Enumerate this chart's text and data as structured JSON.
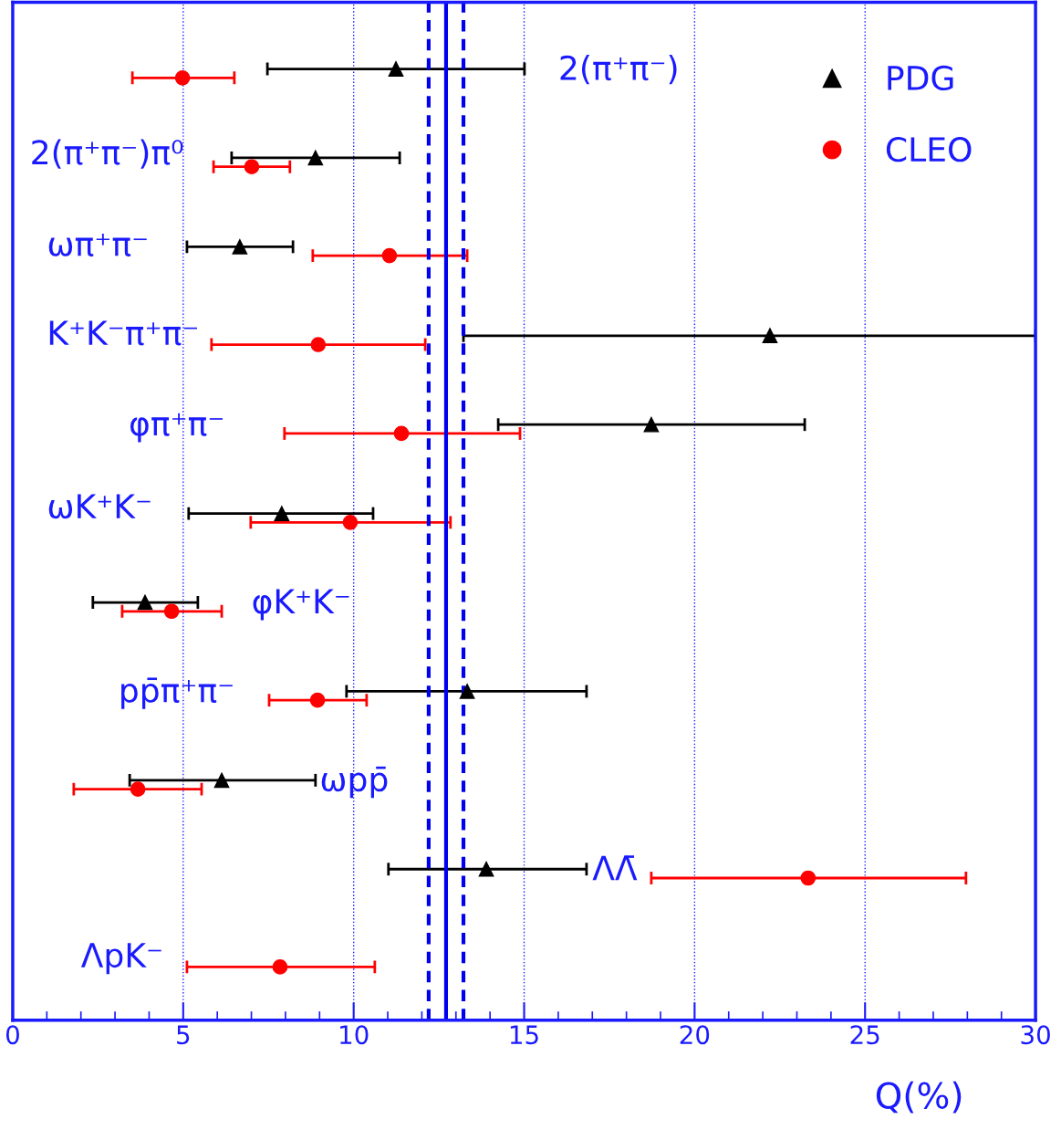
{
  "chart_data": {
    "type": "scatter",
    "orientation": "horizontal",
    "xlabel": "Q(%)",
    "categories": [
      "2(π⁺π⁻)",
      "2(π⁺π⁻)π⁰",
      "ωπ⁺π⁻",
      "K⁺K⁻π⁺π⁻",
      "φπ⁺π⁻",
      "ωK⁺K⁻",
      "φK⁺K⁻",
      "pp̄π⁺π⁻",
      "ωpp̄",
      "ΛΛ̄",
      "ΛpK⁻"
    ],
    "series": [
      {
        "name": "PDG",
        "color": "#000000",
        "marker": "triangle",
        "values": [
          11.24,
          8.88,
          6.66,
          22.21,
          18.73,
          7.89,
          3.88,
          13.33,
          6.13,
          13.89,
          null
        ],
        "errors": [
          [
            7.47,
            15.01
          ],
          [
            6.42,
            11.35
          ],
          [
            5.11,
            8.22
          ],
          [
            13.22,
            30
          ],
          [
            14.24,
            23.23
          ],
          [
            5.16,
            10.57
          ],
          [
            2.35,
            5.43
          ],
          [
            9.79,
            16.83
          ],
          [
            3.43,
            8.88
          ],
          [
            11.02,
            16.83
          ],
          null
        ]
      },
      {
        "name": "CLEO",
        "color": "#ff0000",
        "marker": "circle",
        "values": [
          4.98,
          7.01,
          11.05,
          8.96,
          11.4,
          9.9,
          4.66,
          8.94,
          3.67,
          23.33,
          7.84
        ],
        "errors": [
          [
            3.51,
            6.5
          ],
          [
            5.89,
            8.13
          ],
          [
            8.8,
            13.33
          ],
          [
            5.83,
            12.1
          ],
          [
            7.97,
            14.88
          ],
          [
            6.98,
            12.84
          ],
          [
            3.21,
            6.13
          ],
          [
            7.52,
            10.38
          ],
          [
            1.79,
            5.54
          ],
          [
            18.73,
            27.96
          ],
          [
            5.11,
            10.62
          ]
        ]
      }
    ],
    "xlim": [
      0,
      30
    ],
    "xticks": [
      0,
      5,
      10,
      15,
      20,
      25,
      30
    ],
    "tick_labels": "x",
    "grid": "x",
    "legend": "top right",
    "ref_lines": [
      {
        "axis": "x",
        "value": 12.71,
        "color": "#0000ee",
        "line_style": "solid"
      },
      {
        "axis": "x",
        "value": 12.2,
        "color": "#0000ee",
        "line_style": "dashed"
      },
      {
        "axis": "x",
        "value": 13.22,
        "color": "#0000ee",
        "line_style": "dashed"
      }
    ]
  }
}
